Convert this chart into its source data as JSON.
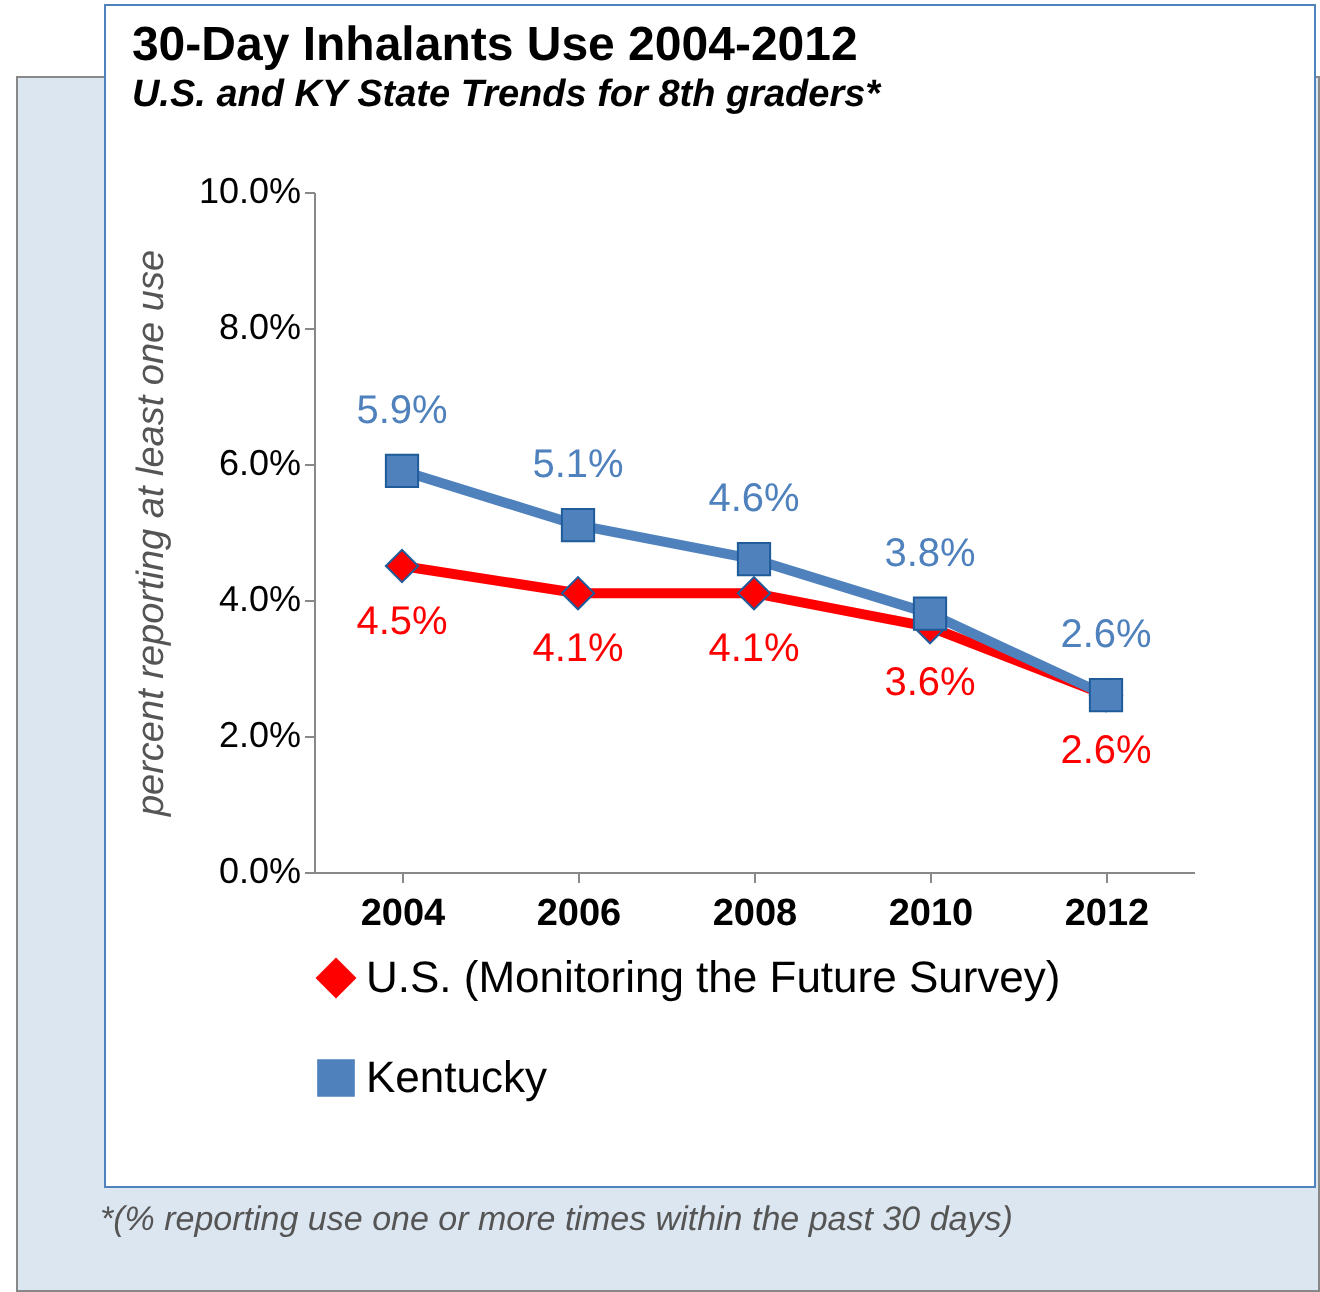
{
  "chart_data": {
    "type": "line",
    "title": "30-Day Inhalants Use 2004-2012",
    "subtitle": "U.S. and KY State Trends for 8th graders*",
    "ylabel": "percent reporting at least one use",
    "categories": [
      "2004",
      "2006",
      "2008",
      "2010",
      "2012"
    ],
    "series": [
      {
        "name": "U.S. (Monitoring the Future Survey)",
        "color": "#ff0000",
        "marker": "diamond",
        "values": [
          4.5,
          4.1,
          4.1,
          3.6,
          2.6
        ],
        "value_labels": [
          "4.5%",
          "4.1%",
          "4.1%",
          "3.6%",
          "2.6%"
        ]
      },
      {
        "name": "Kentucky",
        "color": "#4f81bd",
        "marker": "square",
        "values": [
          5.9,
          5.1,
          4.6,
          3.8,
          2.6
        ],
        "value_labels": [
          "5.9%",
          "5.1%",
          "4.6%",
          "3.8%",
          "2.6%"
        ]
      }
    ],
    "ylim": [
      0,
      10
    ],
    "yticks": [
      {
        "value": 0,
        "label": "0.0%"
      },
      {
        "value": 2,
        "label": "2.0%"
      },
      {
        "value": 4,
        "label": "4.0%"
      },
      {
        "value": 6,
        "label": "6.0%"
      },
      {
        "value": 8,
        "label": "8.0%"
      },
      {
        "value": 10,
        "label": "10.0%"
      }
    ],
    "grid": false,
    "legend": "bottom",
    "annotations": [
      "*(% reporting use one or more times within the past 30 days)"
    ]
  }
}
